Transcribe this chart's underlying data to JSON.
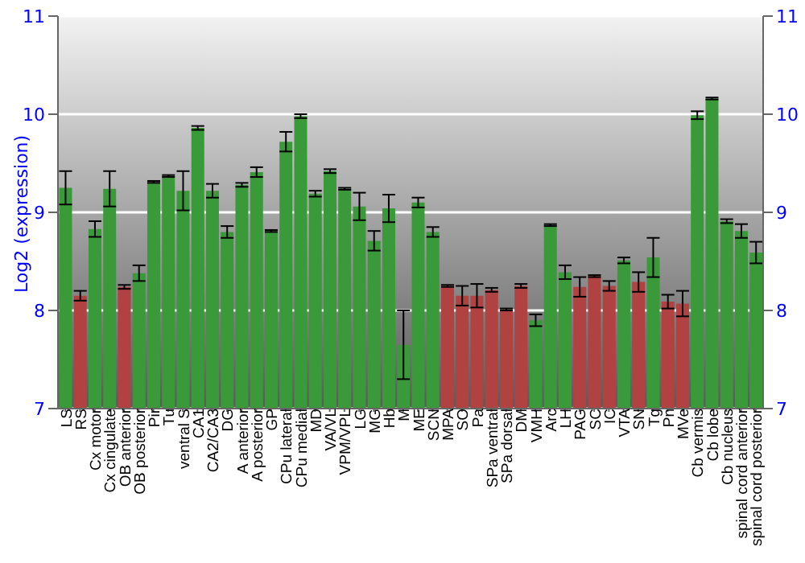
{
  "chart_data": {
    "type": "bar",
    "ylabel": "Log2 (expression)",
    "categories": [
      "LS",
      "RS",
      "Cx motor",
      "Cx cingulate",
      "OB anterior",
      "OB posterior",
      "Pir",
      "Tu",
      "ventral S",
      "CA1",
      "CA2/CA3",
      "DG",
      "A anterior",
      "A posterior",
      "GP",
      "CPu lateral",
      "CPu medial",
      "MD",
      "VA/VL",
      "VPM/VPL",
      "LG",
      "MG",
      "Hb",
      "M",
      "ME",
      "SCN",
      "MPA",
      "SO",
      "Pa",
      "SPa ventral",
      "SPa dorsal",
      "DM",
      "VMH",
      "Arc",
      "LH",
      "PAG",
      "SC",
      "IC",
      "VTA",
      "SN",
      "Tg",
      "Pn",
      "MVe",
      "Cb vermis",
      "Cb lobe",
      "Cb nucleus",
      "spinal cord anterior",
      "spinal cord posterior"
    ],
    "values": [
      9.25,
      8.15,
      8.83,
      9.24,
      8.24,
      8.38,
      9.31,
      9.37,
      9.22,
      9.86,
      9.22,
      8.8,
      9.28,
      9.41,
      8.81,
      9.72,
      9.98,
      9.19,
      9.42,
      9.24,
      9.06,
      8.71,
      9.04,
      7.65,
      9.1,
      8.8,
      8.25,
      8.15,
      8.15,
      8.21,
      8.01,
      8.25,
      7.9,
      8.87,
      8.39,
      8.24,
      8.35,
      8.25,
      8.51,
      8.29,
      8.54,
      8.09,
      8.07,
      9.99,
      10.16,
      8.91,
      8.81,
      8.59
    ],
    "errors": [
      0.17,
      0.05,
      0.08,
      0.18,
      0.02,
      0.08,
      0.01,
      0.01,
      0.2,
      0.02,
      0.07,
      0.06,
      0.02,
      0.05,
      0.01,
      0.1,
      0.02,
      0.03,
      0.02,
      0.01,
      0.14,
      0.1,
      0.14,
      0.35,
      0.05,
      0.05,
      0.01,
      0.1,
      0.12,
      0.02,
      0.01,
      0.02,
      0.06,
      0.01,
      0.07,
      0.1,
      0.01,
      0.05,
      0.03,
      0.1,
      0.2,
      0.07,
      0.13,
      0.04,
      0.01,
      0.02,
      0.07,
      0.11
    ],
    "colors": [
      "#3a9a3a",
      "#b04242",
      "#3a9a3a",
      "#3a9a3a",
      "#b04242",
      "#3a9a3a",
      "#3a9a3a",
      "#3a9a3a",
      "#3a9a3a",
      "#3a9a3a",
      "#3a9a3a",
      "#3a9a3a",
      "#3a9a3a",
      "#3a9a3a",
      "#3a9a3a",
      "#3a9a3a",
      "#3a9a3a",
      "#3a9a3a",
      "#3a9a3a",
      "#3a9a3a",
      "#3a9a3a",
      "#3a9a3a",
      "#3a9a3a",
      "#3a9a3a",
      "#3a9a3a",
      "#3a9a3a",
      "#b04242",
      "#b04242",
      "#b04242",
      "#b04242",
      "#b04242",
      "#b04242",
      "#3a9a3a",
      "#3a9a3a",
      "#3a9a3a",
      "#b04242",
      "#b04242",
      "#b04242",
      "#3a9a3a",
      "#b04242",
      "#3a9a3a",
      "#b04242",
      "#b04242",
      "#3a9a3a",
      "#3a9a3a",
      "#3a9a3a",
      "#3a9a3a",
      "#3a9a3a"
    ],
    "ylim": [
      7,
      11
    ],
    "yticks": [
      7,
      8,
      9,
      10,
      11
    ],
    "y2lim": [
      7,
      11
    ],
    "y2ticks": [
      7,
      8,
      9,
      10,
      11
    ],
    "grid": "y"
  }
}
